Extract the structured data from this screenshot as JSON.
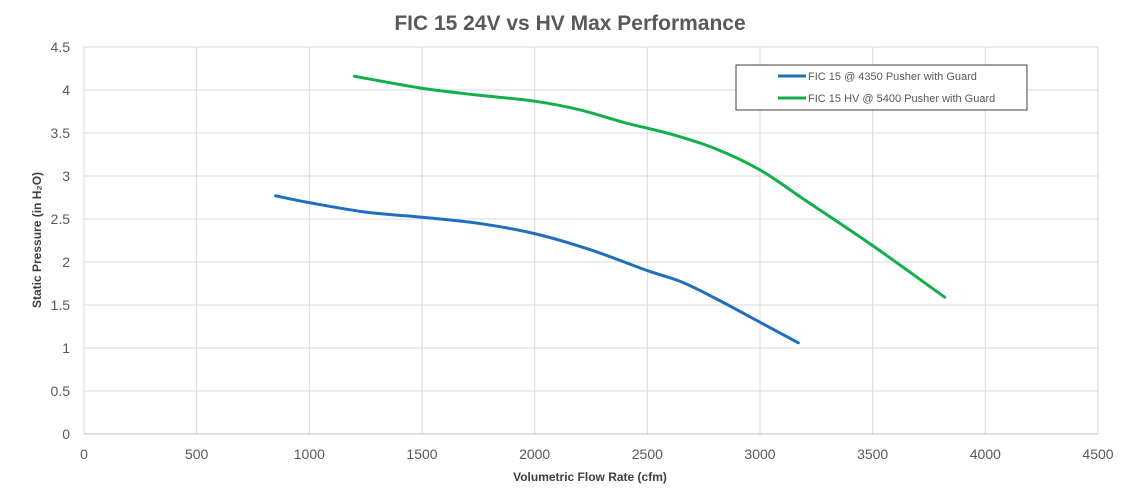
{
  "chart_data": {
    "type": "line",
    "title": "FIC 15 24V vs HV Max Performance",
    "xlabel": "Volumetric Flow Rate (cfm)",
    "ylabel": "Static Pressure (in H₂O)",
    "xlim": [
      0,
      4500
    ],
    "ylim": [
      0,
      4.5
    ],
    "xticks": [
      0,
      500,
      1000,
      1500,
      2000,
      2500,
      3000,
      3500,
      4000,
      4500
    ],
    "yticks": [
      0,
      0.5,
      1,
      1.5,
      2,
      2.5,
      3,
      3.5,
      4,
      4.5
    ],
    "grid": true,
    "legend_position": "top-right",
    "series": [
      {
        "name": "FIC 15 @ 4350 Pusher with Guard",
        "color": "#1f6fbf",
        "x": [
          850,
          1000,
          1250,
          1500,
          1750,
          2000,
          2250,
          2500,
          2650,
          2800,
          3000,
          3170
        ],
        "y": [
          2.77,
          2.69,
          2.58,
          2.52,
          2.45,
          2.33,
          2.14,
          1.9,
          1.77,
          1.58,
          1.3,
          1.06
        ]
      },
      {
        "name": "FIC 15 HV @ 5400 Pusher with Guard",
        "color": "#12b04b",
        "x": [
          1200,
          1500,
          1750,
          2000,
          2200,
          2400,
          2600,
          2800,
          3000,
          3200,
          3500,
          3820
        ],
        "y": [
          4.16,
          4.02,
          3.94,
          3.87,
          3.77,
          3.62,
          3.49,
          3.32,
          3.07,
          2.72,
          2.19,
          1.59
        ]
      }
    ]
  }
}
